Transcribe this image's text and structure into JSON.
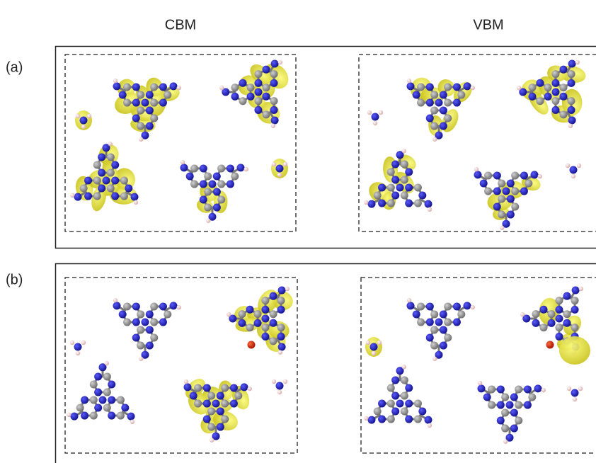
{
  "column_labels": [
    "CBM",
    "VBM"
  ],
  "panels": [
    {
      "label": "(a)"
    },
    {
      "label": "(b)"
    }
  ]
}
